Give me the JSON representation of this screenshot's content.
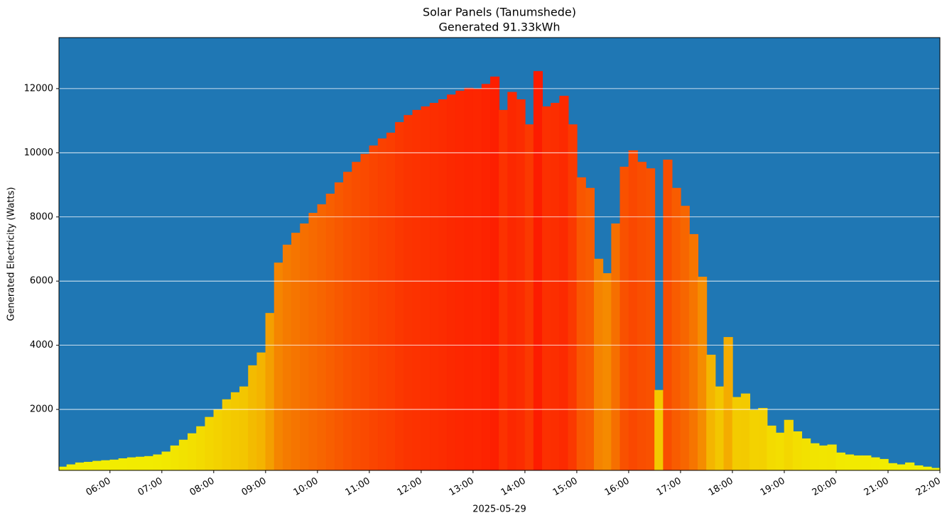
{
  "chart_data": {
    "type": "colored-area",
    "title": "Solar Panels (Tanumshede)",
    "subtitle": "Generated 91.33kWh",
    "x_label": "2025-05-29",
    "y_label": "Generated Electricity (Watts)",
    "background": "#1f77b4",
    "colormap": [
      "#f2f200",
      "#f58000",
      "#ff0a00"
    ],
    "grid": true,
    "x": [
      "05:01",
      "05:10",
      "05:20",
      "05:30",
      "05:40",
      "05:50",
      "06:00",
      "06:10",
      "06:20",
      "06:30",
      "06:40",
      "06:50",
      "07:00",
      "07:10",
      "07:20",
      "07:30",
      "07:40",
      "07:50",
      "08:00",
      "08:10",
      "08:20",
      "08:30",
      "08:40",
      "08:50",
      "09:00",
      "09:10",
      "09:20",
      "09:30",
      "09:40",
      "09:50",
      "10:00",
      "10:10",
      "10:20",
      "10:30",
      "10:40",
      "10:50",
      "11:00",
      "11:10",
      "11:20",
      "11:30",
      "11:40",
      "11:50",
      "12:00",
      "12:10",
      "12:20",
      "12:30",
      "12:40",
      "12:50",
      "13:00",
      "13:10",
      "13:20",
      "13:30",
      "13:40",
      "13:50",
      "14:00",
      "14:10",
      "14:20",
      "14:30",
      "14:40",
      "14:50",
      "15:00",
      "15:10",
      "15:20",
      "15:30",
      "15:40",
      "15:50",
      "16:00",
      "16:10",
      "16:20",
      "16:30",
      "16:40",
      "16:50",
      "17:00",
      "17:10",
      "17:20",
      "17:30",
      "17:40",
      "17:50",
      "18:00",
      "18:10",
      "18:20",
      "18:30",
      "18:40",
      "18:50",
      "19:00",
      "19:10",
      "19:20",
      "19:30",
      "19:40",
      "19:50",
      "20:00",
      "20:10",
      "20:20",
      "20:30",
      "20:40",
      "20:50",
      "21:00",
      "21:10",
      "21:20",
      "21:30",
      "21:40",
      "21:50"
    ],
    "values": [
      210,
      280,
      340,
      360,
      390,
      410,
      430,
      470,
      500,
      520,
      540,
      590,
      680,
      870,
      1050,
      1250,
      1470,
      1760,
      2000,
      2310,
      2530,
      2710,
      3370,
      3770,
      5000,
      6570,
      7130,
      7500,
      7790,
      8120,
      8390,
      8720,
      9070,
      9400,
      9710,
      9960,
      10220,
      10440,
      10620,
      10950,
      11170,
      11330,
      11440,
      11550,
      11660,
      11810,
      11930,
      12020,
      12000,
      12140,
      12370,
      11330,
      11890,
      11660,
      10880,
      12540,
      11440,
      11550,
      11770,
      10880,
      9230,
      8900,
      6690,
      6240,
      7790,
      9560,
      10070,
      9710,
      9510,
      2600,
      9780,
      8900,
      8340,
      7460,
      6130,
      3700,
      2710,
      4250,
      2380,
      2490,
      1980,
      2040,
      1490,
      1270,
      1670,
      1310,
      1090,
      940,
      870,
      900,
      650,
      590,
      560,
      560,
      500,
      450,
      320,
      280,
      340,
      250,
      210,
      170
    ],
    "xlim": [
      "05:01",
      "22:00"
    ],
    "xticks": [
      "06:00",
      "07:00",
      "08:00",
      "09:00",
      "10:00",
      "11:00",
      "12:00",
      "13:00",
      "14:00",
      "15:00",
      "16:00",
      "17:00",
      "18:00",
      "19:00",
      "20:00",
      "21:00",
      "22:00"
    ],
    "ylim": [
      100,
      13590
    ],
    "yticks": [
      2000,
      4000,
      6000,
      8000,
      10000,
      12000
    ]
  }
}
